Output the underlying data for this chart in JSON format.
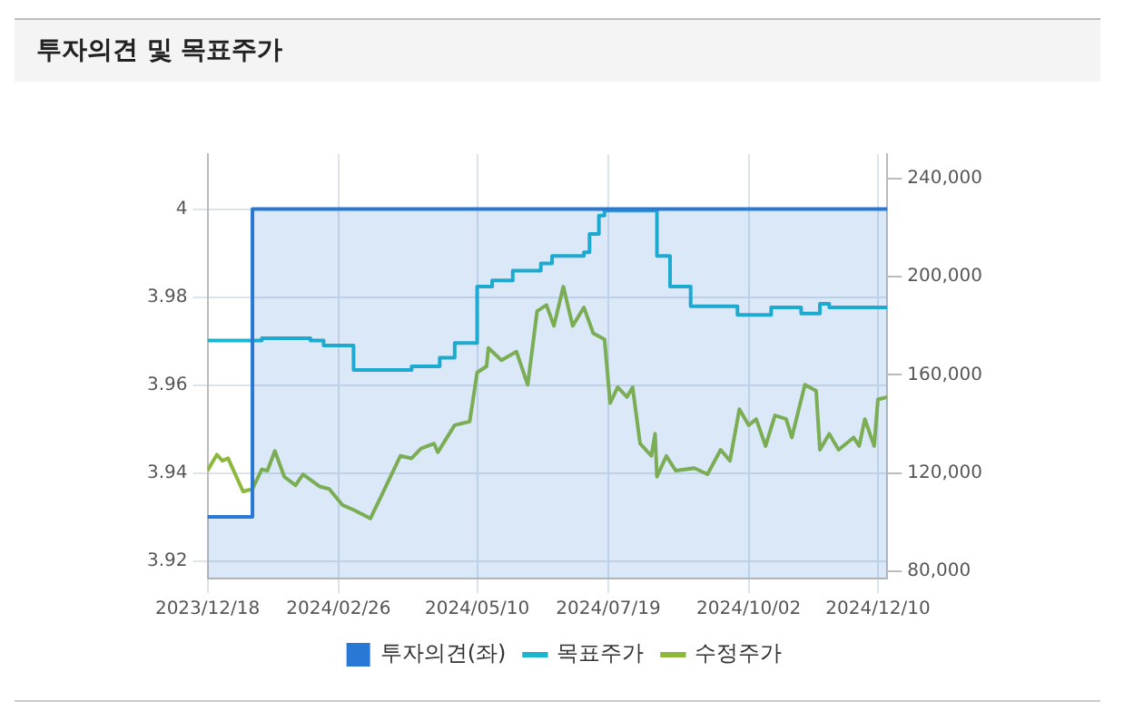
{
  "chart_data": {
    "type": "line",
    "title": "투자의견 및 목표주가",
    "xlim": [
      "2023-12-18",
      "2024-12-15"
    ],
    "xticks": [
      {
        "value": "2023-12-18",
        "label": "2023/12/18"
      },
      {
        "value": "2024-02-26",
        "label": "2024/02/26"
      },
      {
        "value": "2024-05-10",
        "label": "2024/05/10"
      },
      {
        "value": "2024-07-19",
        "label": "2024/07/19"
      },
      {
        "value": "2024-10-02",
        "label": "2024/10/02"
      },
      {
        "value": "2024-12-10",
        "label": "2024/12/10"
      }
    ],
    "ylim": [
      3.916,
      4.0125
    ],
    "yticks": [
      3.92,
      3.94,
      3.96,
      3.98,
      4
    ],
    "y2lim": [
      77000,
      250000
    ],
    "y2ticks": [
      {
        "value": 80000,
        "label": "80,000"
      },
      {
        "value": 120000,
        "label": "120,000"
      },
      {
        "value": 160000,
        "label": "160,000"
      },
      {
        "value": 200000,
        "label": "200,000"
      },
      {
        "value": 240000,
        "label": "240,000"
      }
    ],
    "grid": true,
    "legend": "bottom",
    "series": [
      {
        "name": "투자의견(좌)",
        "type": "area",
        "color": "#2a78d6",
        "x": [
          "2023-12-18",
          "2024-01-11",
          "2024-01-11",
          "2024-12-15"
        ],
        "values": [
          3.93,
          3.93,
          4,
          4
        ]
      },
      {
        "name": "목표주가",
        "type": "step",
        "axis": "y2",
        "color": "#1cb5cf",
        "x": [
          "2023-12-18",
          "2024-01-16",
          "2024-02-11",
          "2024-02-18",
          "2024-03-05",
          "2024-04-05",
          "2024-04-20",
          "2024-04-28",
          "2024-05-10",
          "2024-05-18",
          "2024-05-29",
          "2024-06-13",
          "2024-06-19",
          "2024-07-06",
          "2024-07-09",
          "2024-07-14",
          "2024-07-17",
          "2024-08-14",
          "2024-08-21",
          "2024-09-01",
          "2024-09-26",
          "2024-10-14",
          "2024-10-30",
          "2024-11-09",
          "2024-11-14",
          "2024-12-15"
        ],
        "values": [
          174000,
          175000,
          174000,
          172000,
          162000,
          163500,
          167000,
          173000,
          196000,
          198500,
          202500,
          205500,
          208500,
          210000,
          217500,
          225000,
          227000,
          208500,
          196000,
          188000,
          184500,
          187500,
          185000,
          189000,
          187500,
          187500
        ]
      },
      {
        "name": "수정주가",
        "type": "line",
        "axis": "y2",
        "color": "#8cb83c",
        "x": [
          "2023-12-18",
          "2023-12-23",
          "2023-12-26",
          "2023-12-29",
          "2024-01-06",
          "2024-01-11",
          "2024-01-16",
          "2024-01-19",
          "2024-01-23",
          "2024-01-28",
          "2024-02-03",
          "2024-02-07",
          "2024-02-16",
          "2024-02-21",
          "2024-02-28",
          "2024-03-05",
          "2024-03-14",
          "2024-03-20",
          "2024-03-30",
          "2024-04-05",
          "2024-04-10",
          "2024-04-17",
          "2024-04-19",
          "2024-04-28",
          "2024-05-06",
          "2024-05-10",
          "2024-05-15",
          "2024-05-16",
          "2024-05-23",
          "2024-05-31",
          "2024-06-06",
          "2024-06-11",
          "2024-06-16",
          "2024-06-20",
          "2024-06-25",
          "2024-06-30",
          "2024-07-06",
          "2024-07-11",
          "2024-07-17",
          "2024-07-20",
          "2024-07-24",
          "2024-07-29",
          "2024-08-01",
          "2024-08-05",
          "2024-08-11",
          "2024-08-13",
          "2024-08-14",
          "2024-08-19",
          "2024-08-24",
          "2024-09-03",
          "2024-09-10",
          "2024-09-17",
          "2024-09-22",
          "2024-09-27",
          "2024-10-02",
          "2024-10-06",
          "2024-10-11",
          "2024-10-16",
          "2024-10-22",
          "2024-10-25",
          "2024-11-01",
          "2024-11-07",
          "2024-11-09",
          "2024-11-14",
          "2024-11-19",
          "2024-11-27",
          "2024-11-30",
          "2024-12-03",
          "2024-12-08",
          "2024-12-10",
          "2024-12-15"
        ],
        "values": [
          121000,
          127500,
          125000,
          126000,
          112500,
          113500,
          121500,
          121000,
          129000,
          118500,
          115000,
          119500,
          114500,
          113500,
          107000,
          105000,
          101500,
          111000,
          127000,
          126000,
          130000,
          132000,
          128500,
          139500,
          141000,
          161000,
          163500,
          171000,
          166000,
          169500,
          156000,
          186000,
          188500,
          180000,
          196000,
          180000,
          187500,
          177000,
          174500,
          148500,
          155000,
          151000,
          155000,
          132000,
          127000,
          136000,
          118500,
          127000,
          121000,
          122000,
          119500,
          129500,
          125000,
          146000,
          139500,
          142000,
          131000,
          143500,
          142000,
          134500,
          156000,
          153500,
          129500,
          136000,
          129500,
          134500,
          131000,
          142000,
          131000,
          150000,
          151000
        ]
      }
    ]
  }
}
